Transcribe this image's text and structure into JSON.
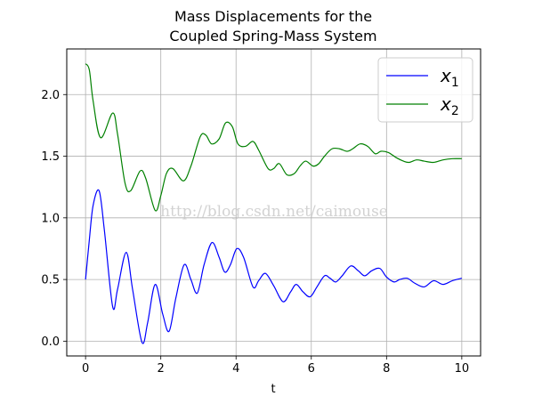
{
  "chart_data": {
    "type": "line",
    "title_lines": [
      "Mass Displacements for the",
      "Coupled Spring-Mass System"
    ],
    "xlabel": "t",
    "ylabel": "",
    "xlim": [
      -0.5,
      10.5
    ],
    "ylim": [
      -0.12,
      2.37
    ],
    "xticks": [
      0,
      2,
      4,
      6,
      8,
      10
    ],
    "xtick_labels": [
      "0",
      "2",
      "4",
      "6",
      "8",
      "10"
    ],
    "yticks": [
      0.0,
      0.5,
      1.0,
      1.5,
      2.0
    ],
    "ytick_labels": [
      "0.0",
      "0.5",
      "1.0",
      "1.5",
      "2.0"
    ],
    "grid": true,
    "legend_position": "top-right",
    "watermark": "http://blog.csdn.net/caimouse",
    "series": [
      {
        "name": "x1",
        "legend_base": "x",
        "legend_sub": "1",
        "color": "#0000ff",
        "x": [
          0,
          0.1,
          0.2,
          0.36,
          0.5,
          0.72,
          0.85,
          1.08,
          1.25,
          1.5,
          1.65,
          1.85,
          2.05,
          2.22,
          2.4,
          2.62,
          2.8,
          2.97,
          3.15,
          3.36,
          3.55,
          3.7,
          3.85,
          4.02,
          4.2,
          4.45,
          4.6,
          4.78,
          5.0,
          5.25,
          5.45,
          5.6,
          5.78,
          5.97,
          6.15,
          6.35,
          6.5,
          6.65,
          6.82,
          7.05,
          7.25,
          7.42,
          7.6,
          7.82,
          8.0,
          8.2,
          8.35,
          8.55,
          8.75,
          9.0,
          9.25,
          9.5,
          9.75,
          10.0
        ],
        "values": [
          0.5,
          0.82,
          1.1,
          1.22,
          0.9,
          0.28,
          0.42,
          0.72,
          0.42,
          -0.01,
          0.15,
          0.46,
          0.22,
          0.08,
          0.35,
          0.62,
          0.5,
          0.39,
          0.62,
          0.8,
          0.68,
          0.56,
          0.62,
          0.75,
          0.68,
          0.44,
          0.49,
          0.55,
          0.45,
          0.32,
          0.4,
          0.46,
          0.4,
          0.36,
          0.44,
          0.53,
          0.51,
          0.48,
          0.53,
          0.61,
          0.57,
          0.53,
          0.57,
          0.59,
          0.52,
          0.48,
          0.5,
          0.51,
          0.47,
          0.44,
          0.49,
          0.46,
          0.49,
          0.51
        ]
      },
      {
        "name": "x2",
        "legend_base": "x",
        "legend_sub": "2",
        "color": "#008000",
        "x": [
          0,
          0.1,
          0.2,
          0.4,
          0.72,
          0.85,
          1.05,
          1.2,
          1.45,
          1.6,
          1.85,
          2.0,
          2.15,
          2.32,
          2.6,
          2.8,
          3.05,
          3.2,
          3.35,
          3.55,
          3.72,
          3.9,
          4.05,
          4.25,
          4.45,
          4.6,
          4.85,
          5.0,
          5.15,
          5.35,
          5.55,
          5.7,
          5.85,
          6.05,
          6.2,
          6.35,
          6.55,
          6.75,
          6.95,
          7.1,
          7.3,
          7.5,
          7.7,
          7.85,
          8.05,
          8.25,
          8.45,
          8.6,
          8.8,
          9.0,
          9.25,
          9.5,
          9.75,
          10.0
        ],
        "values": [
          2.25,
          2.2,
          1.95,
          1.65,
          1.85,
          1.68,
          1.28,
          1.22,
          1.38,
          1.32,
          1.06,
          1.18,
          1.36,
          1.4,
          1.3,
          1.42,
          1.66,
          1.67,
          1.6,
          1.64,
          1.77,
          1.74,
          1.6,
          1.58,
          1.62,
          1.55,
          1.4,
          1.4,
          1.44,
          1.35,
          1.36,
          1.42,
          1.46,
          1.42,
          1.44,
          1.5,
          1.56,
          1.56,
          1.54,
          1.56,
          1.6,
          1.58,
          1.52,
          1.54,
          1.53,
          1.49,
          1.46,
          1.45,
          1.47,
          1.46,
          1.45,
          1.47,
          1.48,
          1.48
        ]
      }
    ]
  }
}
